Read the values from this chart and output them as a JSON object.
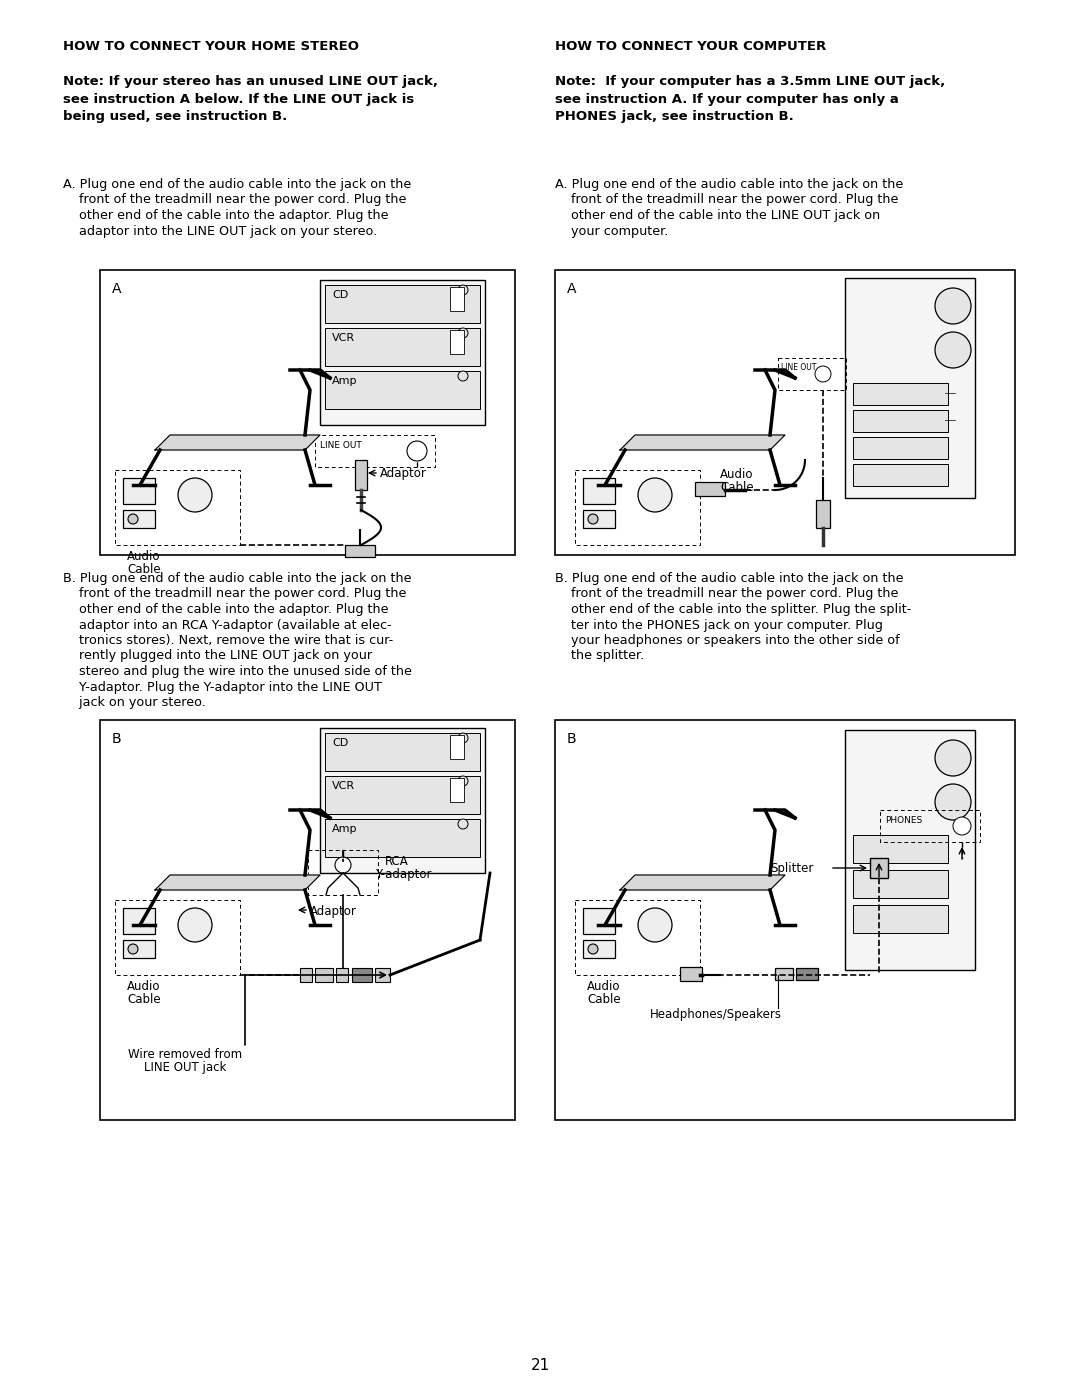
{
  "page_bg": "#ffffff",
  "page_num": "21",
  "heading_left": "HOW TO CONNECT YOUR HOME STEREO",
  "heading_right": "HOW TO CONNECT YOUR COMPUTER",
  "note_left_line1": "Note: If your stereo has an unused LINE OUT jack,",
  "note_left_line2": "see instruction A below. If the LINE OUT jack is",
  "note_left_line3": "being used, see instruction B.",
  "note_right_line1": "Note:  If your computer has a 3.5mm LINE OUT jack,",
  "note_right_line2": "see instruction A. If your computer has only a",
  "note_right_line3": "PHONES jack, see instruction B.",
  "instA_left": [
    "A. Plug one end of the audio cable into the jack on the",
    "    front of the treadmill near the power cord. Plug the",
    "    other end of the cable into the adaptor. Plug the",
    "    adaptor into the LINE OUT jack on your stereo."
  ],
  "instA_right": [
    "A. Plug one end of the audio cable into the jack on the",
    "    front of the treadmill near the power cord. Plug the",
    "    other end of the cable into the LINE OUT jack on",
    "    your computer."
  ],
  "instB_left": [
    "B. Plug one end of the audio cable into the jack on the",
    "    front of the treadmill near the power cord. Plug the",
    "    other end of the cable into the adaptor. Plug the",
    "    adaptor into an RCA Y-adaptor (available at elec-",
    "    tronics stores). Next, remove the wire that is cur-",
    "    rently plugged into the LINE OUT jack on your",
    "    stereo and plug the wire into the unused side of the",
    "    Y-adaptor. Plug the Y-adaptor into the LINE OUT",
    "    jack on your stereo."
  ],
  "instB_right": [
    "B. Plug one end of the audio cable into the jack on the",
    "    front of the treadmill near the power cord. Plug the",
    "    other end of the cable into the splitter. Plug the split-",
    "    ter into the PHONES jack on your computer. Plug",
    "    your headphones or speakers into the other side of",
    "    the splitter."
  ]
}
